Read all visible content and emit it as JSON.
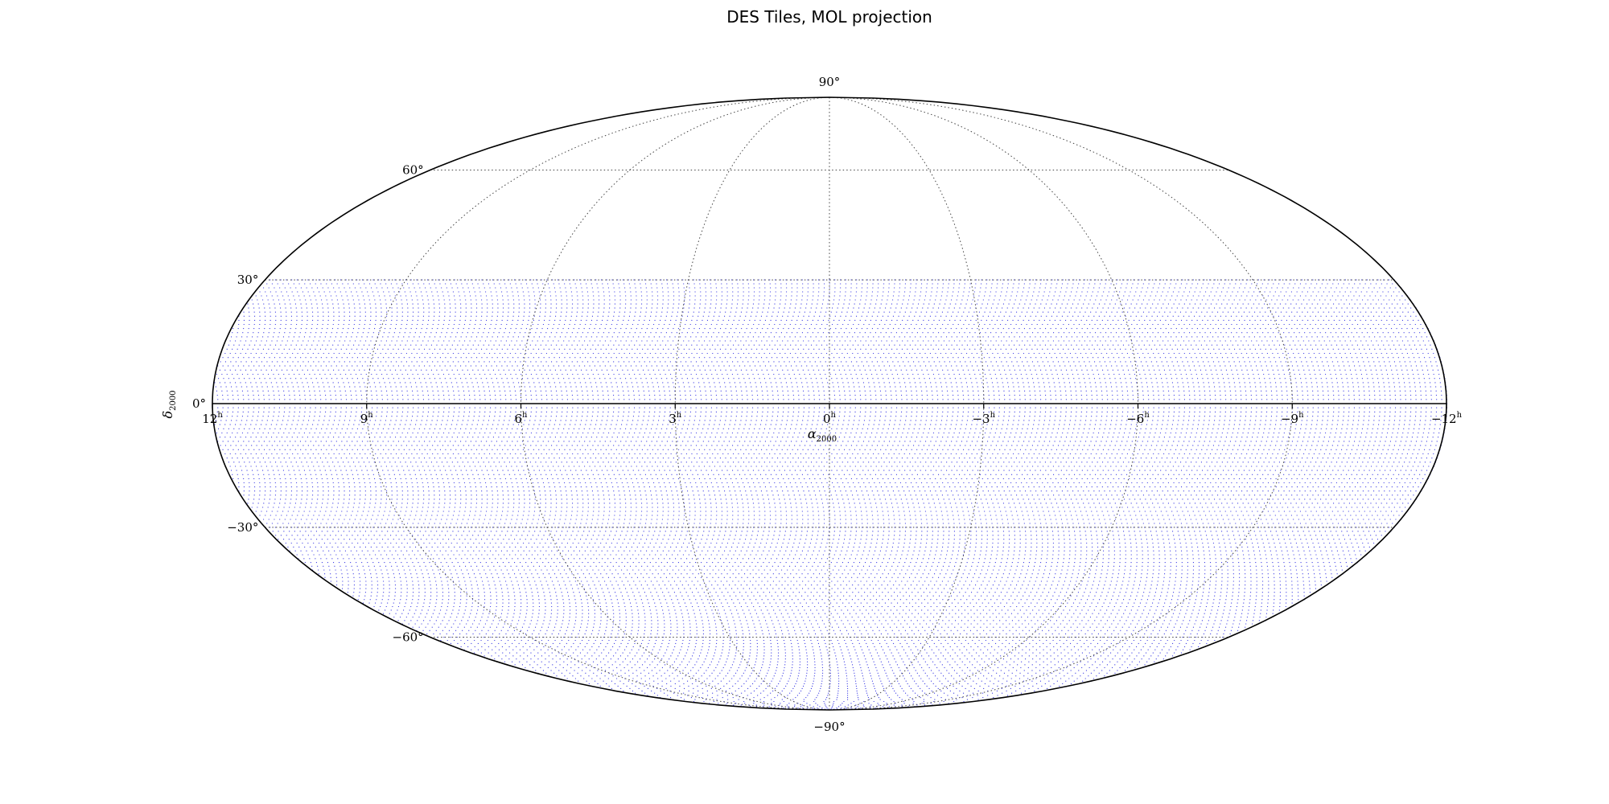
{
  "chart_data": {
    "type": "scatter",
    "title": "DES Tiles, MOL projection",
    "projection": "mollweide",
    "xlabel": "α",
    "xlabel_sub": "2000",
    "ylabel": "δ",
    "ylabel_sub": "2000",
    "ra_ticks_hours": [
      12,
      9,
      6,
      3,
      0,
      -3,
      -6,
      -9,
      -12
    ],
    "ra_tick_labels": [
      "12",
      "9",
      "6",
      "3",
      "0",
      "−3",
      "−6",
      "−9",
      "−12"
    ],
    "ra_tick_suffix": "h",
    "dec_ticks_deg": [
      90,
      60,
      30,
      0,
      -30,
      -60,
      -90
    ],
    "dec_tick_labels": [
      "90°",
      "60°",
      "30°",
      "0°",
      "−30°",
      "−60°",
      "−90°"
    ],
    "grid": true,
    "series": [
      {
        "marker": "dot",
        "color": "#2020e0",
        "ra_range_deg": [
          -180,
          180
        ],
        "dec_range_deg": [
          -90,
          30
        ],
        "dec_step_deg": 1,
        "ra_step_deg": 1.5
      }
    ]
  }
}
